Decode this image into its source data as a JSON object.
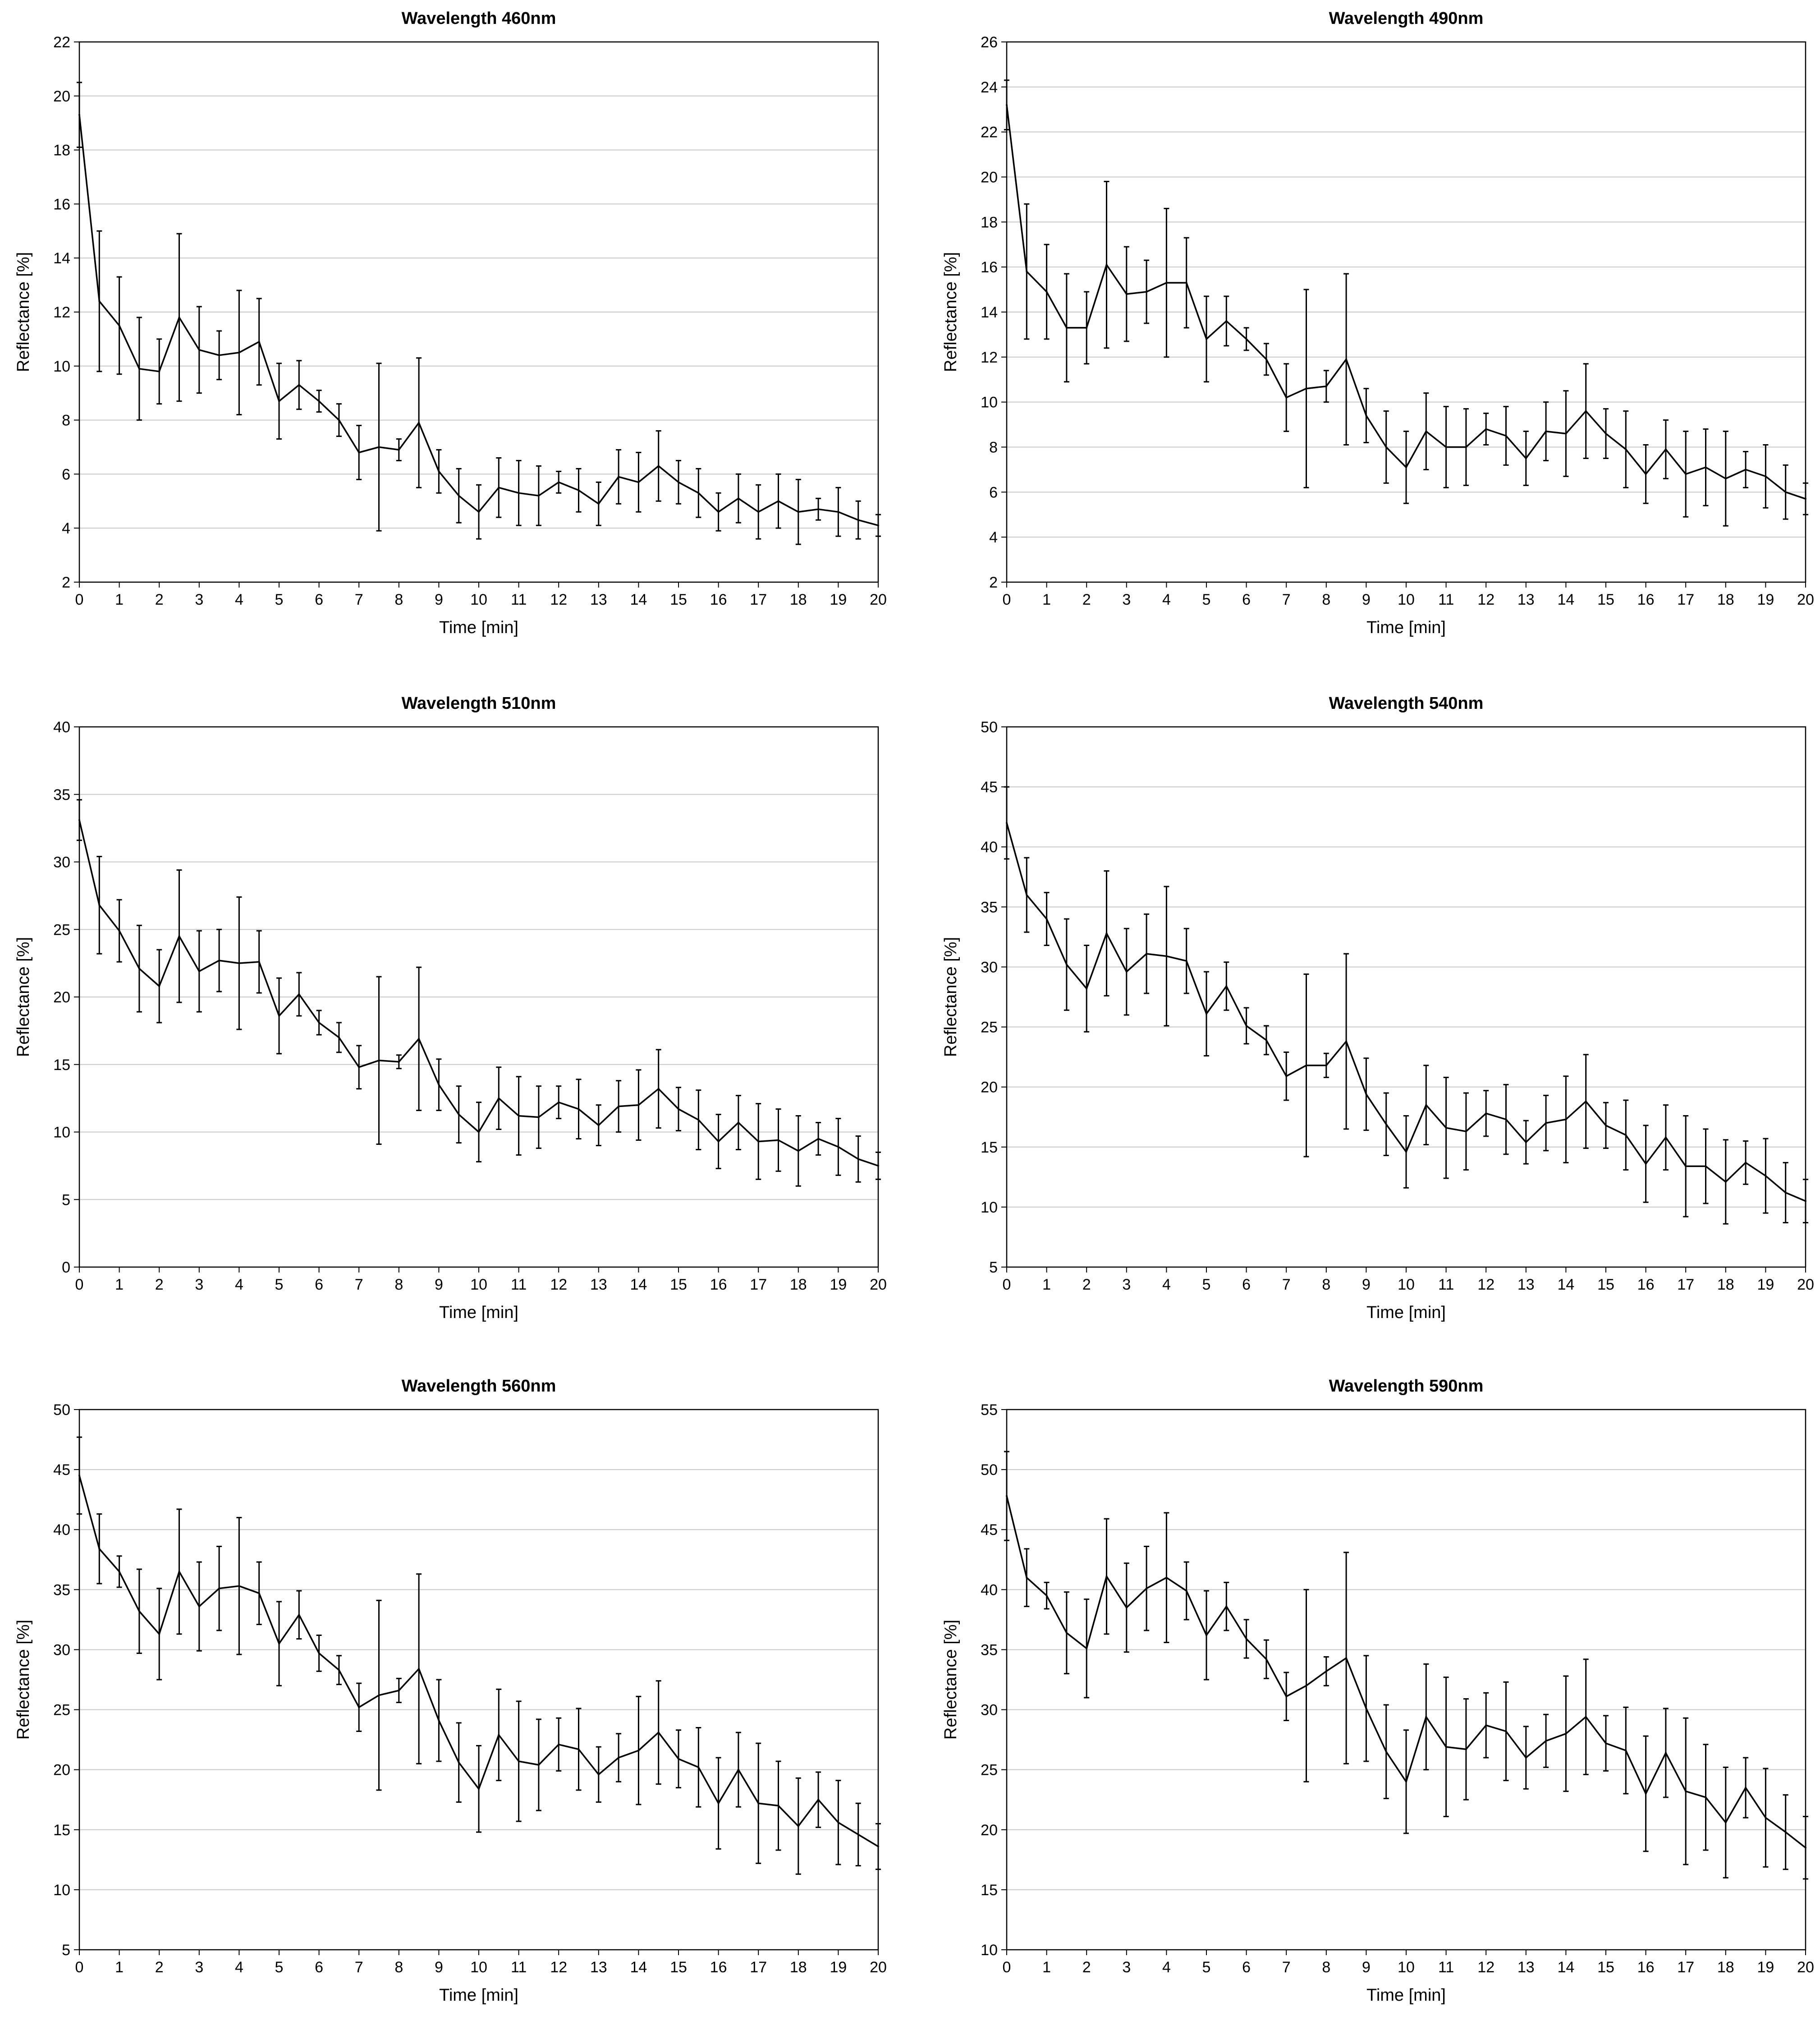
{
  "chart_data": [
    {
      "type": "line",
      "title": "Wavelength 460nm",
      "xlabel": "Time [min]",
      "ylabel": "Reflectance [%]",
      "xlim": [
        0,
        20
      ],
      "ylim": [
        2,
        22
      ],
      "yticks": [
        2,
        4,
        6,
        8,
        10,
        12,
        14,
        16,
        18,
        20,
        22
      ],
      "xticks": [
        0,
        1,
        2,
        3,
        4,
        5,
        6,
        7,
        8,
        9,
        10,
        11,
        12,
        13,
        14,
        15,
        16,
        17,
        18,
        19,
        20
      ],
      "grid": true,
      "x": [
        0,
        0.5,
        1,
        1.5,
        2,
        2.5,
        3,
        3.5,
        4,
        4.5,
        5,
        5.5,
        6,
        6.5,
        7,
        7.5,
        8,
        8.5,
        9,
        9.5,
        10,
        10.5,
        11,
        11.5,
        12,
        12.5,
        13,
        13.5,
        14,
        14.5,
        15,
        15.5,
        16,
        16.5,
        17,
        17.5,
        18,
        18.5,
        19,
        19.5,
        20
      ],
      "values": [
        19.3,
        12.4,
        11.5,
        9.9,
        9.8,
        11.8,
        10.6,
        10.4,
        10.5,
        10.9,
        8.7,
        9.3,
        8.7,
        8.0,
        6.8,
        7.0,
        6.9,
        7.9,
        6.1,
        5.2,
        4.6,
        5.5,
        5.3,
        5.2,
        5.7,
        5.4,
        4.9,
        5.9,
        5.7,
        6.3,
        5.7,
        5.3,
        4.6,
        5.1,
        4.6,
        5.0,
        4.6,
        4.7,
        4.6,
        4.3,
        4.1
      ],
      "errors": [
        1.2,
        2.6,
        1.8,
        1.9,
        1.2,
        3.1,
        1.6,
        0.9,
        2.3,
        1.6,
        1.4,
        0.9,
        0.4,
        0.6,
        1.0,
        3.1,
        0.4,
        2.4,
        0.8,
        1.0,
        1.0,
        1.1,
        1.2,
        1.1,
        0.4,
        0.8,
        0.8,
        1.0,
        1.1,
        1.3,
        0.8,
        0.9,
        0.7,
        0.9,
        1.0,
        1.0,
        1.2,
        0.4,
        0.9,
        0.7,
        0.4
      ]
    },
    {
      "type": "line",
      "title": "Wavelength 490nm",
      "xlabel": "Time [min]",
      "ylabel": "Reflectance [%]",
      "xlim": [
        0,
        20
      ],
      "ylim": [
        2,
        26
      ],
      "yticks": [
        2,
        4,
        6,
        8,
        10,
        12,
        14,
        16,
        18,
        20,
        22,
        24,
        26
      ],
      "xticks": [
        0,
        1,
        2,
        3,
        4,
        5,
        6,
        7,
        8,
        9,
        10,
        11,
        12,
        13,
        14,
        15,
        16,
        17,
        18,
        19,
        20
      ],
      "grid": true,
      "x": [
        0,
        0.5,
        1,
        1.5,
        2,
        2.5,
        3,
        3.5,
        4,
        4.5,
        5,
        5.5,
        6,
        6.5,
        7,
        7.5,
        8,
        8.5,
        9,
        9.5,
        10,
        10.5,
        11,
        11.5,
        12,
        12.5,
        13,
        13.5,
        14,
        14.5,
        15,
        15.5,
        16,
        16.5,
        17,
        17.5,
        18,
        18.5,
        19,
        19.5,
        20
      ],
      "values": [
        23.2,
        15.8,
        14.9,
        13.3,
        13.3,
        16.1,
        14.8,
        14.9,
        15.3,
        15.3,
        12.8,
        13.6,
        12.8,
        11.9,
        10.2,
        10.6,
        10.7,
        11.9,
        9.4,
        8.0,
        7.1,
        8.7,
        8.0,
        8.0,
        8.8,
        8.5,
        7.5,
        8.7,
        8.6,
        9.6,
        8.6,
        7.9,
        6.8,
        7.9,
        6.8,
        7.1,
        6.6,
        7.0,
        6.7,
        6.0,
        5.7
      ],
      "errors": [
        1.1,
        3.0,
        2.1,
        2.4,
        1.6,
        3.7,
        2.1,
        1.4,
        3.3,
        2.0,
        1.9,
        1.1,
        0.5,
        0.7,
        1.5,
        4.4,
        0.7,
        3.8,
        1.2,
        1.6,
        1.6,
        1.7,
        1.8,
        1.7,
        0.7,
        1.3,
        1.2,
        1.3,
        1.9,
        2.1,
        1.1,
        1.7,
        1.3,
        1.3,
        1.9,
        1.7,
        2.1,
        0.8,
        1.4,
        1.2,
        0.7
      ]
    },
    {
      "type": "line",
      "title": "Wavelength 510nm",
      "xlabel": "Time [min]",
      "ylabel": "Reflectance [%]",
      "xlim": [
        0,
        20
      ],
      "ylim": [
        0,
        40
      ],
      "yticks": [
        0,
        5,
        10,
        15,
        20,
        25,
        30,
        35,
        40
      ],
      "xticks": [
        0,
        1,
        2,
        3,
        4,
        5,
        6,
        7,
        8,
        9,
        10,
        11,
        12,
        13,
        14,
        15,
        16,
        17,
        18,
        19,
        20
      ],
      "grid": true,
      "x": [
        0,
        0.5,
        1,
        1.5,
        2,
        2.5,
        3,
        3.5,
        4,
        4.5,
        5,
        5.5,
        6,
        6.5,
        7,
        7.5,
        8,
        8.5,
        9,
        9.5,
        10,
        10.5,
        11,
        11.5,
        12,
        12.5,
        13,
        13.5,
        14,
        14.5,
        15,
        15.5,
        16,
        16.5,
        17,
        17.5,
        18,
        18.5,
        19,
        19.5,
        20
      ],
      "values": [
        33.1,
        26.8,
        24.9,
        22.1,
        20.8,
        24.5,
        21.9,
        22.7,
        22.5,
        22.6,
        18.6,
        20.2,
        18.1,
        17.0,
        14.8,
        15.3,
        15.2,
        16.9,
        13.5,
        11.3,
        10.0,
        12.5,
        11.2,
        11.1,
        12.2,
        11.7,
        10.5,
        11.9,
        12.0,
        13.2,
        11.7,
        10.9,
        9.3,
        10.7,
        9.3,
        9.4,
        8.6,
        9.5,
        8.9,
        8.0,
        7.5
      ],
      "errors": [
        1.5,
        3.6,
        2.3,
        3.2,
        2.7,
        4.9,
        3.0,
        2.3,
        4.9,
        2.3,
        2.8,
        1.6,
        0.9,
        1.1,
        1.6,
        6.2,
        0.5,
        5.3,
        1.9,
        2.1,
        2.2,
        2.3,
        2.9,
        2.3,
        1.2,
        2.2,
        1.5,
        1.9,
        2.6,
        2.9,
        1.6,
        2.2,
        2.0,
        2.0,
        2.8,
        2.3,
        2.6,
        1.2,
        2.1,
        1.7,
        1.0
      ]
    },
    {
      "type": "line",
      "title": "Wavelength 540nm",
      "xlabel": "Time [min]",
      "ylabel": "Reflectance [%]",
      "xlim": [
        0,
        20
      ],
      "ylim": [
        5,
        50
      ],
      "yticks": [
        5,
        10,
        15,
        20,
        25,
        30,
        35,
        40,
        45,
        50
      ],
      "xticks": [
        0,
        1,
        2,
        3,
        4,
        5,
        6,
        7,
        8,
        9,
        10,
        11,
        12,
        13,
        14,
        15,
        16,
        17,
        18,
        19,
        20
      ],
      "grid": true,
      "x": [
        0,
        0.5,
        1,
        1.5,
        2,
        2.5,
        3,
        3.5,
        4,
        4.5,
        5,
        5.5,
        6,
        6.5,
        7,
        7.5,
        8,
        8.5,
        9,
        9.5,
        10,
        10.5,
        11,
        11.5,
        12,
        12.5,
        13,
        13.5,
        14,
        14.5,
        15,
        15.5,
        16,
        16.5,
        17,
        17.5,
        18,
        18.5,
        19,
        19.5,
        20
      ],
      "values": [
        42.0,
        36.0,
        34.0,
        30.2,
        28.2,
        32.8,
        29.6,
        31.1,
        30.9,
        30.5,
        26.1,
        28.4,
        25.1,
        23.9,
        20.9,
        21.8,
        21.8,
        23.8,
        19.4,
        16.9,
        14.6,
        18.5,
        16.6,
        16.3,
        17.8,
        17.3,
        15.4,
        17.0,
        17.3,
        18.8,
        16.8,
        16.0,
        13.6,
        15.8,
        13.4,
        13.4,
        12.1,
        13.7,
        12.6,
        11.2,
        10.5
      ],
      "errors": [
        3.0,
        3.1,
        2.2,
        3.8,
        3.6,
        5.2,
        3.6,
        3.3,
        5.8,
        2.7,
        3.5,
        2.0,
        1.5,
        1.2,
        2.0,
        7.6,
        1.0,
        7.3,
        3.0,
        2.6,
        3.0,
        3.3,
        4.2,
        3.2,
        1.9,
        2.9,
        1.8,
        2.3,
        3.6,
        3.9,
        1.9,
        2.9,
        3.2,
        2.7,
        4.2,
        3.1,
        3.5,
        1.8,
        3.1,
        2.5,
        1.8
      ]
    },
    {
      "type": "line",
      "title": "Wavelength 560nm",
      "xlabel": "Time [min]",
      "ylabel": "Reflectance [%]",
      "xlim": [
        0,
        20
      ],
      "ylim": [
        5,
        50
      ],
      "yticks": [
        5,
        10,
        15,
        20,
        25,
        30,
        35,
        40,
        45,
        50
      ],
      "xticks": [
        0,
        1,
        2,
        3,
        4,
        5,
        6,
        7,
        8,
        9,
        10,
        11,
        12,
        13,
        14,
        15,
        16,
        17,
        18,
        19,
        20
      ],
      "grid": true,
      "x": [
        0,
        0.5,
        1,
        1.5,
        2,
        2.5,
        3,
        3.5,
        4,
        4.5,
        5,
        5.5,
        6,
        6.5,
        7,
        7.5,
        8,
        8.5,
        9,
        9.5,
        10,
        10.5,
        11,
        11.5,
        12,
        12.5,
        13,
        13.5,
        14,
        14.5,
        15,
        15.5,
        16,
        16.5,
        17,
        17.5,
        18,
        18.5,
        19,
        19.5,
        20
      ],
      "values": [
        44.5,
        38.4,
        36.5,
        33.2,
        31.3,
        36.5,
        33.6,
        35.1,
        35.3,
        34.7,
        30.5,
        32.9,
        29.7,
        28.3,
        25.2,
        26.2,
        26.6,
        28.4,
        24.1,
        20.6,
        18.4,
        22.9,
        20.7,
        20.4,
        22.1,
        21.7,
        19.6,
        21.0,
        21.6,
        23.1,
        20.9,
        20.2,
        17.2,
        20.0,
        17.2,
        17.0,
        15.3,
        17.5,
        15.6,
        14.6,
        13.6
      ],
      "errors": [
        3.2,
        2.9,
        1.3,
        3.5,
        3.8,
        5.2,
        3.7,
        3.5,
        5.7,
        2.6,
        3.5,
        2.0,
        1.5,
        1.2,
        2.0,
        7.9,
        1.0,
        7.9,
        3.4,
        3.3,
        3.6,
        3.8,
        5.0,
        3.8,
        2.2,
        3.4,
        2.3,
        2.0,
        4.5,
        4.3,
        2.4,
        3.3,
        3.8,
        3.1,
        5.0,
        3.7,
        4.0,
        2.3,
        3.5,
        2.6,
        1.9
      ]
    },
    {
      "type": "line",
      "title": "Wavelength 590nm",
      "xlabel": "Time [min]",
      "ylabel": "Reflectance [%]",
      "xlim": [
        0,
        20
      ],
      "ylim": [
        10,
        55
      ],
      "yticks": [
        10,
        15,
        20,
        25,
        30,
        35,
        40,
        45,
        50,
        55
      ],
      "xticks": [
        0,
        1,
        2,
        3,
        4,
        5,
        6,
        7,
        8,
        9,
        10,
        11,
        12,
        13,
        14,
        15,
        16,
        17,
        18,
        19,
        20
      ],
      "grid": true,
      "x": [
        0,
        0.5,
        1,
        1.5,
        2,
        2.5,
        3,
        3.5,
        4,
        4.5,
        5,
        5.5,
        6,
        6.5,
        7,
        7.5,
        8,
        8.5,
        9,
        9.5,
        10,
        10.5,
        11,
        11.5,
        12,
        12.5,
        13,
        13.5,
        14,
        14.5,
        15,
        15.5,
        16,
        16.5,
        17,
        17.5,
        18,
        18.5,
        19,
        19.5,
        20
      ],
      "values": [
        47.8,
        41.0,
        39.5,
        36.4,
        35.1,
        41.1,
        38.5,
        40.1,
        41.0,
        39.9,
        36.2,
        38.6,
        35.9,
        34.2,
        31.1,
        32.0,
        33.2,
        34.3,
        30.1,
        26.5,
        24.0,
        29.4,
        26.9,
        26.7,
        28.7,
        28.2,
        26.0,
        27.4,
        28.0,
        29.4,
        27.2,
        26.6,
        23.0,
        26.4,
        23.2,
        22.7,
        20.6,
        23.5,
        21.0,
        19.8,
        18.5
      ],
      "errors": [
        3.7,
        2.4,
        1.1,
        3.4,
        4.1,
        4.8,
        3.7,
        3.5,
        5.4,
        2.4,
        3.7,
        2.0,
        1.6,
        1.6,
        2.0,
        8.0,
        1.2,
        8.8,
        4.4,
        3.9,
        4.3,
        4.4,
        5.8,
        4.2,
        2.7,
        4.1,
        2.6,
        2.2,
        4.8,
        4.8,
        2.3,
        3.6,
        4.8,
        3.7,
        6.1,
        4.4,
        4.6,
        2.5,
        4.1,
        3.1,
        2.6
      ]
    }
  ]
}
